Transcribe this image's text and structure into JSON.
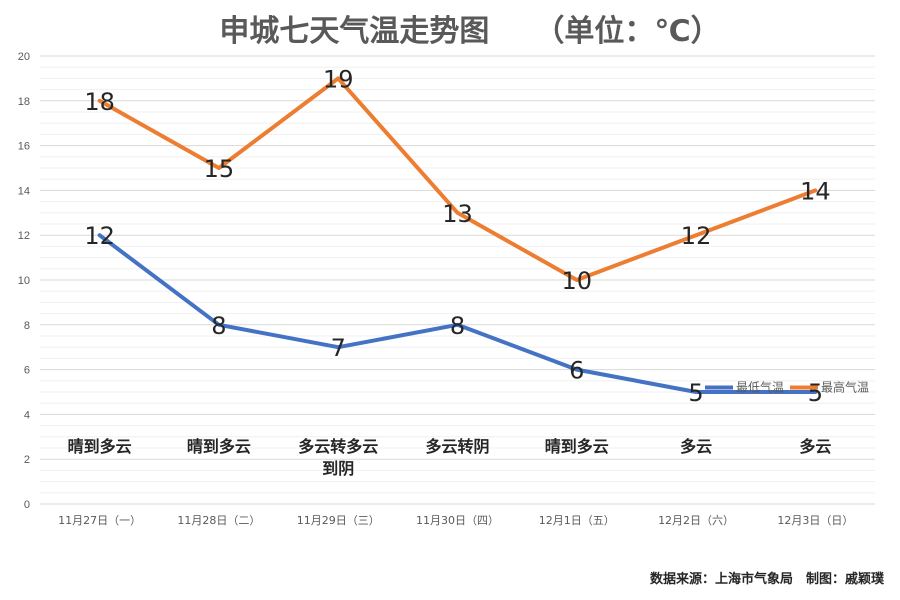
{
  "chart_data": {
    "type": "line",
    "title": "申城七天气温走势图　　（单位：℃）",
    "categories": [
      "11月27日（一）",
      "11月28日（二）",
      "11月29日（三）",
      "11月30日（四）",
      "12月1日（五）",
      "12月2日（六）",
      "12月3日（日）"
    ],
    "weather": [
      [
        "晴到多云"
      ],
      [
        "晴到多云"
      ],
      [
        "多云转多云",
        "到阴"
      ],
      [
        "多云转阴"
      ],
      [
        "晴到多云"
      ],
      [
        "多云"
      ],
      [
        "多云"
      ]
    ],
    "series": [
      {
        "name": "最低气温",
        "color": "#4472c4",
        "values": [
          12,
          8,
          7,
          8,
          6,
          5,
          5
        ]
      },
      {
        "name": "最高气温",
        "color": "#ed7d31",
        "values": [
          18,
          15,
          19,
          13,
          10,
          12,
          14
        ]
      }
    ],
    "ylim": [
      0,
      20
    ],
    "yticks": [
      0,
      2,
      4,
      6,
      8,
      10,
      12,
      14,
      16,
      18,
      20
    ],
    "grid": true,
    "legend_position": "right"
  },
  "footer": "数据来源：上海市气象局　制图：戚颖璞"
}
